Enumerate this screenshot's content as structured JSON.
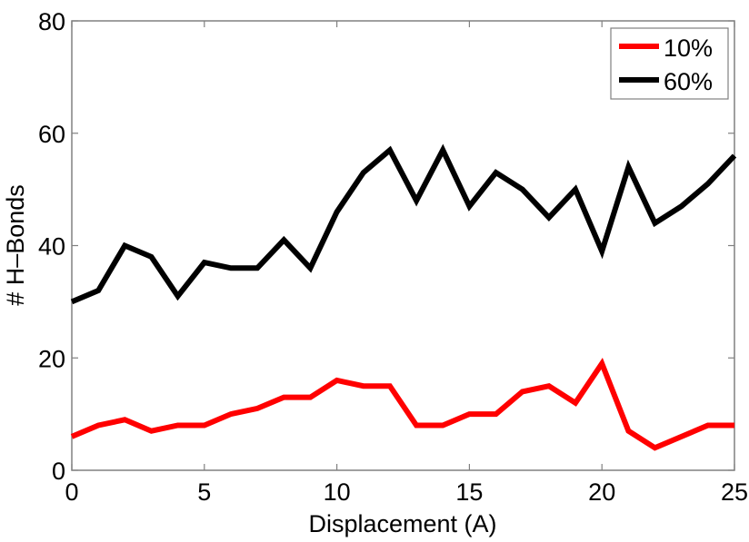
{
  "chart_data": {
    "type": "line",
    "title": "",
    "xlabel": "Displacement (A)",
    "ylabel": "# H–Bonds",
    "xlim": [
      0,
      25
    ],
    "ylim": [
      0,
      80
    ],
    "xticks": [
      0,
      5,
      10,
      15,
      20,
      25
    ],
    "yticks": [
      0,
      20,
      40,
      60,
      80
    ],
    "grid": false,
    "legend_position": "upper right",
    "x": [
      0,
      1,
      2,
      3,
      4,
      5,
      6,
      7,
      8,
      9,
      10,
      11,
      12,
      13,
      14,
      15,
      16,
      17,
      18,
      19,
      20,
      21,
      22,
      23,
      24,
      25
    ],
    "series": [
      {
        "name": "10%",
        "color": "#ff0000",
        "values": [
          6,
          8,
          9,
          7,
          8,
          8,
          10,
          11,
          13,
          13,
          16,
          15,
          15,
          8,
          8,
          10,
          10,
          14,
          15,
          12,
          19,
          7,
          4,
          6,
          8,
          8
        ]
      },
      {
        "name": "60%",
        "color": "#000000",
        "values": [
          30,
          32,
          40,
          38,
          31,
          37,
          36,
          36,
          41,
          36,
          46,
          53,
          57,
          48,
          57,
          47,
          53,
          50,
          45,
          50,
          39,
          54,
          44,
          47,
          51,
          56
        ]
      }
    ]
  },
  "colors": {
    "axis": "#808080",
    "background": "#ffffff"
  }
}
